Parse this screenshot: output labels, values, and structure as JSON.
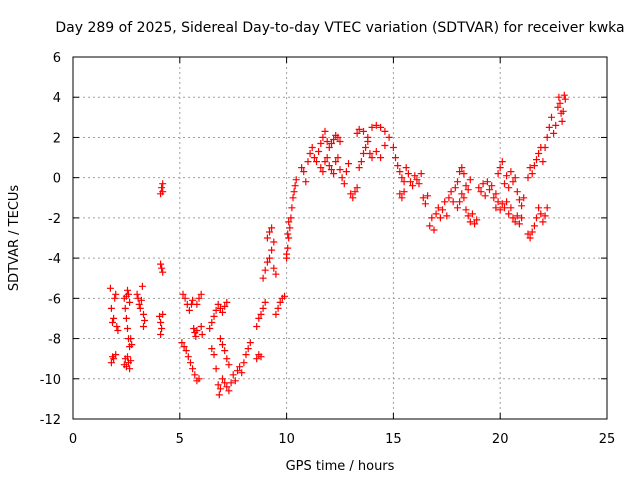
{
  "chart_data": {
    "type": "scatter",
    "title": "Day 289 of 2025, Sidereal Day-to-day VTEC variation (SDTVAR) for receiver kwka",
    "xlabel": "GPS time / hours",
    "ylabel": "SDTVAR / TECUs",
    "xlim": [
      0,
      25
    ],
    "ylim": [
      -12,
      6
    ],
    "xticks": [
      0,
      5,
      10,
      15,
      20,
      25
    ],
    "yticks": [
      -12,
      -10,
      -8,
      -6,
      -4,
      -2,
      0,
      2,
      4,
      6
    ],
    "grid": true,
    "marker": "plus",
    "colors": {
      "series": "#ff0000",
      "grid": "#a0a0a0",
      "axis": "#000000"
    },
    "series": [
      {
        "values_xy": [
          [
            1.75,
            -5.5
          ],
          [
            1.8,
            -6.5
          ],
          [
            1.85,
            -7.2
          ],
          [
            1.9,
            -7.0
          ],
          [
            1.95,
            -6.0
          ],
          [
            2.0,
            -5.8
          ],
          [
            2.05,
            -7.4
          ],
          [
            2.1,
            -7.6
          ],
          [
            1.8,
            -9.2
          ],
          [
            1.85,
            -8.9
          ],
          [
            1.9,
            -9.0
          ],
          [
            2.0,
            -8.8
          ],
          [
            2.4,
            -9.3
          ],
          [
            2.45,
            -9.0
          ],
          [
            2.5,
            -9.4
          ],
          [
            2.55,
            -8.9
          ],
          [
            2.6,
            -9.2
          ],
          [
            2.65,
            -9.5
          ],
          [
            2.7,
            -9.1
          ],
          [
            2.4,
            -6.0
          ],
          [
            2.45,
            -6.5
          ],
          [
            2.5,
            -7.0
          ],
          [
            2.55,
            -7.5
          ],
          [
            2.6,
            -8.0
          ],
          [
            2.65,
            -8.4
          ],
          [
            2.7,
            -8.0
          ],
          [
            2.75,
            -8.3
          ],
          [
            2.5,
            -5.9
          ],
          [
            2.55,
            -5.6
          ],
          [
            2.6,
            -5.8
          ],
          [
            2.65,
            -6.2
          ],
          [
            3.0,
            -5.8
          ],
          [
            3.05,
            -6.0
          ],
          [
            3.1,
            -6.3
          ],
          [
            3.15,
            -6.5
          ],
          [
            3.2,
            -6.1
          ],
          [
            3.25,
            -5.4
          ],
          [
            3.3,
            -6.8
          ],
          [
            3.35,
            -7.1
          ],
          [
            3.3,
            -7.4
          ],
          [
            4.1,
            -0.8
          ],
          [
            4.15,
            -0.5
          ],
          [
            4.2,
            -0.3
          ],
          [
            4.2,
            -0.7
          ],
          [
            4.1,
            -4.3
          ],
          [
            4.15,
            -4.5
          ],
          [
            4.2,
            -4.7
          ],
          [
            4.05,
            -6.9
          ],
          [
            4.1,
            -7.2
          ],
          [
            4.15,
            -7.5
          ],
          [
            4.2,
            -6.8
          ],
          [
            4.1,
            -7.8
          ],
          [
            5.1,
            -8.2
          ],
          [
            5.2,
            -8.4
          ],
          [
            5.3,
            -8.6
          ],
          [
            5.4,
            -8.9
          ],
          [
            5.5,
            -9.2
          ],
          [
            5.6,
            -9.5
          ],
          [
            5.7,
            -9.8
          ],
          [
            5.8,
            -10.1
          ],
          [
            5.9,
            -10.0
          ],
          [
            5.15,
            -5.8
          ],
          [
            5.25,
            -6.0
          ],
          [
            5.35,
            -6.3
          ],
          [
            5.45,
            -6.6
          ],
          [
            5.55,
            -6.3
          ],
          [
            5.6,
            -6.1
          ],
          [
            5.65,
            -7.5
          ],
          [
            5.7,
            -7.7
          ],
          [
            5.75,
            -7.9
          ],
          [
            5.8,
            -7.6
          ],
          [
            5.8,
            -6.3
          ],
          [
            5.9,
            -6.0
          ],
          [
            6.0,
            -5.8
          ],
          [
            6.0,
            -7.4
          ],
          [
            6.05,
            -7.8
          ],
          [
            6.4,
            -7.5
          ],
          [
            6.5,
            -7.2
          ],
          [
            6.6,
            -6.9
          ],
          [
            6.7,
            -6.6
          ],
          [
            6.8,
            -6.3
          ],
          [
            6.9,
            -6.5
          ],
          [
            7.0,
            -6.7
          ],
          [
            7.1,
            -6.4
          ],
          [
            7.2,
            -6.2
          ],
          [
            6.5,
            -8.5
          ],
          [
            6.6,
            -8.8
          ],
          [
            6.7,
            -9.5
          ],
          [
            6.8,
            -10.3
          ],
          [
            6.85,
            -10.8
          ],
          [
            6.9,
            -10.5
          ],
          [
            7.0,
            -10.0
          ],
          [
            7.1,
            -10.2
          ],
          [
            7.2,
            -10.4
          ],
          [
            7.3,
            -10.6
          ],
          [
            7.4,
            -10.2
          ],
          [
            7.5,
            -9.8
          ],
          [
            7.6,
            -10.1
          ],
          [
            7.7,
            -9.6
          ],
          [
            7.8,
            -9.4
          ],
          [
            7.9,
            -9.7
          ],
          [
            8.0,
            -9.2
          ],
          [
            8.1,
            -8.8
          ],
          [
            8.2,
            -8.5
          ],
          [
            8.3,
            -8.2
          ],
          [
            6.9,
            -8.0
          ],
          [
            7.0,
            -8.3
          ],
          [
            7.1,
            -8.6
          ],
          [
            7.2,
            -9.0
          ],
          [
            7.3,
            -9.3
          ],
          [
            8.6,
            -9.0
          ],
          [
            8.7,
            -8.8
          ],
          [
            8.8,
            -8.9
          ],
          [
            8.6,
            -7.4
          ],
          [
            8.7,
            -7.0
          ],
          [
            8.8,
            -6.8
          ],
          [
            8.9,
            -6.5
          ],
          [
            9.0,
            -6.2
          ],
          [
            8.9,
            -5.0
          ],
          [
            9.0,
            -4.6
          ],
          [
            9.1,
            -4.2
          ],
          [
            9.2,
            -4.0
          ],
          [
            9.3,
            -3.6
          ],
          [
            9.4,
            -3.2
          ],
          [
            9.1,
            -3.0
          ],
          [
            9.2,
            -2.7
          ],
          [
            9.3,
            -2.5
          ],
          [
            9.4,
            -4.5
          ],
          [
            9.5,
            -4.8
          ],
          [
            9.5,
            -6.8
          ],
          [
            9.6,
            -6.5
          ],
          [
            9.7,
            -6.2
          ],
          [
            9.8,
            -6.0
          ],
          [
            9.9,
            -5.9
          ],
          [
            10.0,
            -4.0
          ],
          [
            10.05,
            -3.5
          ],
          [
            10.1,
            -3.0
          ],
          [
            10.15,
            -2.5
          ],
          [
            10.2,
            -2.0
          ],
          [
            10.25,
            -1.5
          ],
          [
            10.3,
            -1.0
          ],
          [
            10.35,
            -0.7
          ],
          [
            10.4,
            -0.4
          ],
          [
            10.45,
            -0.1
          ],
          [
            10.0,
            -3.8
          ],
          [
            10.05,
            -2.8
          ],
          [
            10.1,
            -2.2
          ],
          [
            10.7,
            0.5
          ],
          [
            10.8,
            0.3
          ],
          [
            10.9,
            -0.2
          ],
          [
            11.0,
            0.8
          ],
          [
            11.1,
            1.2
          ],
          [
            11.2,
            1.5
          ],
          [
            11.3,
            1.0
          ],
          [
            11.4,
            0.8
          ],
          [
            11.5,
            1.3
          ],
          [
            11.6,
            1.7
          ],
          [
            11.7,
            2.0
          ],
          [
            11.8,
            2.3
          ],
          [
            11.9,
            1.8
          ],
          [
            12.0,
            1.5
          ],
          [
            12.1,
            1.7
          ],
          [
            12.2,
            1.9
          ],
          [
            12.3,
            2.1
          ],
          [
            12.4,
            2.0
          ],
          [
            12.5,
            1.8
          ],
          [
            11.6,
            0.5
          ],
          [
            11.7,
            0.3
          ],
          [
            11.8,
            0.8
          ],
          [
            11.9,
            1.0
          ],
          [
            12.0,
            0.6
          ],
          [
            12.1,
            0.4
          ],
          [
            12.2,
            0.2
          ],
          [
            12.3,
            0.8
          ],
          [
            12.4,
            1.0
          ],
          [
            12.5,
            0.4
          ],
          [
            12.6,
            0.0
          ],
          [
            12.7,
            -0.3
          ],
          [
            12.8,
            0.3
          ],
          [
            12.9,
            0.7
          ],
          [
            13.0,
            -0.8
          ],
          [
            13.1,
            -1.0
          ],
          [
            13.2,
            -0.7
          ],
          [
            13.3,
            -0.5
          ],
          [
            13.4,
            0.5
          ],
          [
            13.5,
            0.8
          ],
          [
            13.6,
            1.2
          ],
          [
            13.7,
            1.5
          ],
          [
            13.8,
            1.8
          ],
          [
            13.9,
            1.2
          ],
          [
            14.0,
            1.0
          ],
          [
            13.3,
            2.2
          ],
          [
            13.4,
            2.4
          ],
          [
            13.6,
            2.3
          ],
          [
            13.8,
            2.0
          ],
          [
            14.0,
            2.5
          ],
          [
            14.2,
            2.6
          ],
          [
            14.4,
            2.5
          ],
          [
            14.6,
            2.3
          ],
          [
            14.2,
            1.3
          ],
          [
            14.4,
            1.0
          ],
          [
            14.6,
            1.6
          ],
          [
            14.8,
            2.0
          ],
          [
            15.0,
            1.5
          ],
          [
            15.1,
            1.0
          ],
          [
            15.2,
            0.6
          ],
          [
            15.3,
            0.3
          ],
          [
            15.4,
            0.0
          ],
          [
            15.5,
            -0.2
          ],
          [
            15.6,
            0.5
          ],
          [
            15.7,
            0.2
          ],
          [
            15.3,
            -0.8
          ],
          [
            15.4,
            -1.0
          ],
          [
            15.5,
            -0.7
          ],
          [
            15.8,
            -0.2
          ],
          [
            15.9,
            -0.4
          ],
          [
            16.0,
            0.1
          ],
          [
            16.1,
            -0.1
          ],
          [
            16.2,
            -0.3
          ],
          [
            16.3,
            0.2
          ],
          [
            16.4,
            -1.0
          ],
          [
            16.5,
            -1.3
          ],
          [
            16.6,
            -0.9
          ],
          [
            16.7,
            -2.4
          ],
          [
            16.8,
            -2.0
          ],
          [
            16.9,
            -2.6
          ],
          [
            17.0,
            -1.8
          ],
          [
            17.1,
            -1.5
          ],
          [
            17.2,
            -2.0
          ],
          [
            17.3,
            -1.6
          ],
          [
            17.4,
            -1.2
          ],
          [
            17.5,
            -1.9
          ],
          [
            17.6,
            -1.0
          ],
          [
            17.7,
            -0.7
          ],
          [
            17.8,
            -1.2
          ],
          [
            17.9,
            -0.5
          ],
          [
            18.0,
            -0.2
          ],
          [
            18.1,
            0.3
          ],
          [
            18.2,
            0.5
          ],
          [
            18.3,
            0.2
          ],
          [
            18.4,
            -0.4
          ],
          [
            18.5,
            -0.6
          ],
          [
            18.6,
            -0.1
          ],
          [
            18.0,
            -1.5
          ],
          [
            18.1,
            -1.2
          ],
          [
            18.2,
            -0.8
          ],
          [
            18.3,
            -1.0
          ],
          [
            18.4,
            -1.6
          ],
          [
            18.5,
            -1.9
          ],
          [
            18.6,
            -2.2
          ],
          [
            18.7,
            -1.8
          ],
          [
            18.8,
            -2.3
          ],
          [
            18.9,
            -2.1
          ],
          [
            19.0,
            -0.5
          ],
          [
            19.1,
            -0.7
          ],
          [
            19.2,
            -0.3
          ],
          [
            19.3,
            -0.9
          ],
          [
            19.4,
            -0.2
          ],
          [
            19.5,
            -0.6
          ],
          [
            19.6,
            -0.4
          ],
          [
            19.7,
            -1.0
          ],
          [
            19.8,
            -0.8
          ],
          [
            19.9,
            0.2
          ],
          [
            20.0,
            0.5
          ],
          [
            20.1,
            0.8
          ],
          [
            20.2,
            -0.3
          ],
          [
            20.3,
            0.1
          ],
          [
            20.4,
            -0.5
          ],
          [
            20.5,
            0.3
          ],
          [
            20.6,
            -0.2
          ],
          [
            20.7,
            0.0
          ],
          [
            20.8,
            -0.7
          ],
          [
            20.9,
            -1.1
          ],
          [
            21.0,
            -1.4
          ],
          [
            21.1,
            -1.0
          ],
          [
            19.8,
            -1.5
          ],
          [
            19.9,
            -1.2
          ],
          [
            20.0,
            -1.6
          ],
          [
            20.1,
            -1.3
          ],
          [
            20.2,
            -1.5
          ],
          [
            20.3,
            -1.2
          ],
          [
            20.4,
            -1.8
          ],
          [
            20.5,
            -1.5
          ],
          [
            20.6,
            -2.0
          ],
          [
            20.7,
            -2.2
          ],
          [
            20.8,
            -1.9
          ],
          [
            20.9,
            -2.3
          ],
          [
            21.0,
            -2.0
          ],
          [
            21.3,
            -2.8
          ],
          [
            21.4,
            -3.0
          ],
          [
            21.5,
            -2.7
          ],
          [
            21.6,
            -2.4
          ],
          [
            21.7,
            -2.0
          ],
          [
            21.8,
            -1.5
          ],
          [
            21.9,
            -1.8
          ],
          [
            22.0,
            -2.2
          ],
          [
            22.1,
            -1.9
          ],
          [
            22.2,
            -1.5
          ],
          [
            21.3,
            0.0
          ],
          [
            21.4,
            0.5
          ],
          [
            21.5,
            0.2
          ],
          [
            21.6,
            0.6
          ],
          [
            21.7,
            0.9
          ],
          [
            21.8,
            1.2
          ],
          [
            21.9,
            1.5
          ],
          [
            22.0,
            0.8
          ],
          [
            22.1,
            1.5
          ],
          [
            22.2,
            2.0
          ],
          [
            22.3,
            2.5
          ],
          [
            22.4,
            3.0
          ],
          [
            22.5,
            2.2
          ],
          [
            22.6,
            2.6
          ],
          [
            22.7,
            3.5
          ],
          [
            22.75,
            4.0
          ],
          [
            22.8,
            3.7
          ],
          [
            22.85,
            3.2
          ],
          [
            22.9,
            2.8
          ],
          [
            22.95,
            3.3
          ],
          [
            23.0,
            4.1
          ],
          [
            23.05,
            3.9
          ]
        ]
      }
    ]
  }
}
